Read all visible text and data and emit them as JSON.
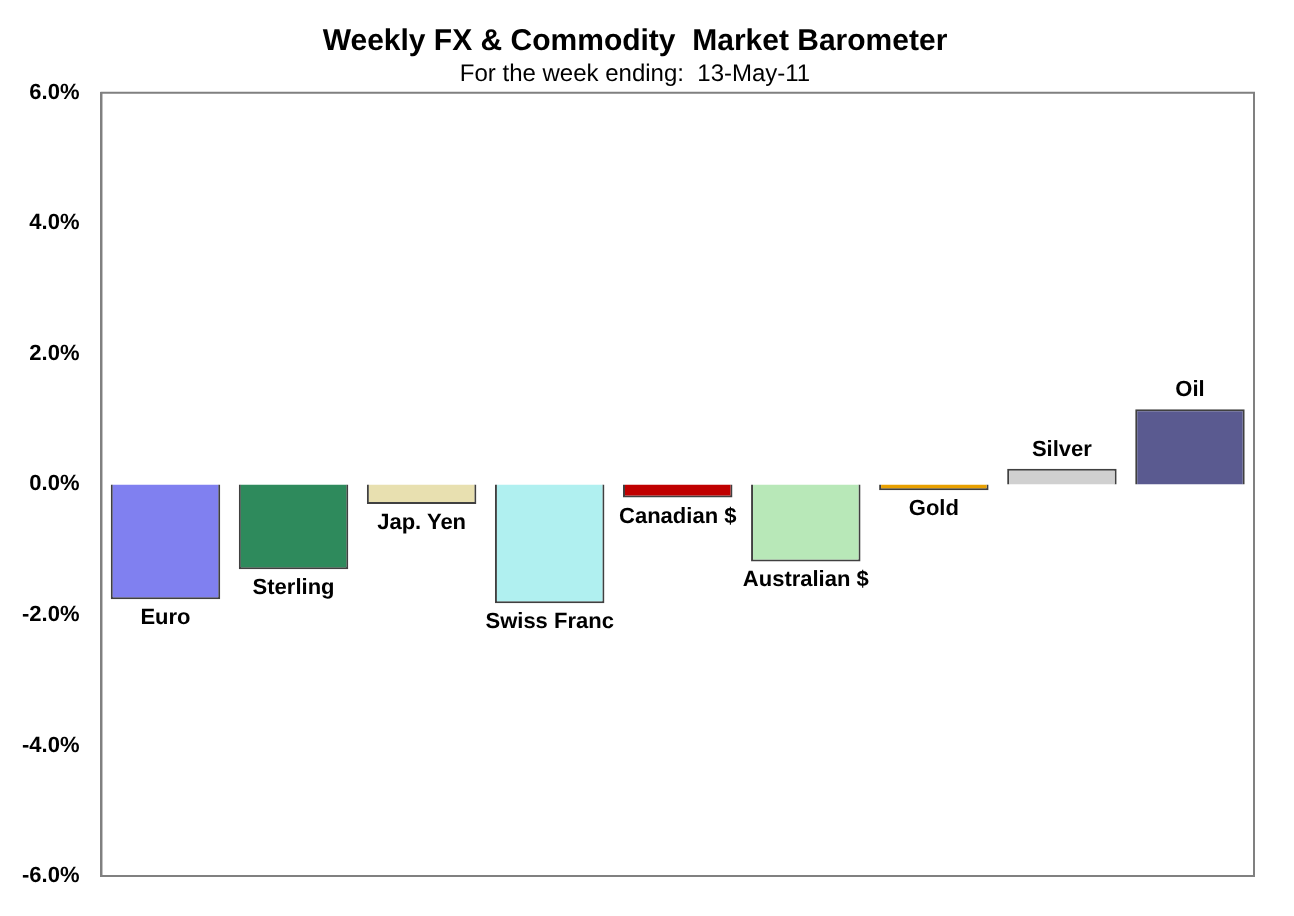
{
  "chart_data": {
    "type": "bar",
    "title": "Weekly FX & Commodity  Market Barometer",
    "subtitle": "For the week ending:  13-May-11",
    "categories": [
      "Euro",
      "Sterling",
      "Jap. Yen",
      "Swiss Franc",
      "Canadian $",
      "Australian $",
      "Gold",
      "Silver",
      "Oil"
    ],
    "values": [
      -1.76,
      -1.3,
      -0.3,
      -1.82,
      -0.2,
      -1.18,
      -0.09,
      0.24,
      1.15
    ],
    "colors": [
      "#8080f0",
      "#2e8a5c",
      "#e8e0b0",
      "#b0f0f0",
      "#c00000",
      "#b8e8b8",
      "#e8a000",
      "#d0d0d0",
      "#5a5a90"
    ],
    "ylim": [
      -6,
      6
    ],
    "yticks": [
      {
        "value": -6,
        "label": "-6.0%"
      },
      {
        "value": -4,
        "label": "-4.0%"
      },
      {
        "value": -2,
        "label": "-2.0%"
      },
      {
        "value": 0,
        "label": "0.0%"
      },
      {
        "value": 2,
        "label": "2.0%"
      },
      {
        "value": 4,
        "label": "4.0%"
      },
      {
        "value": 6,
        "label": "6.0%"
      }
    ],
    "grid": false,
    "legend": false
  }
}
